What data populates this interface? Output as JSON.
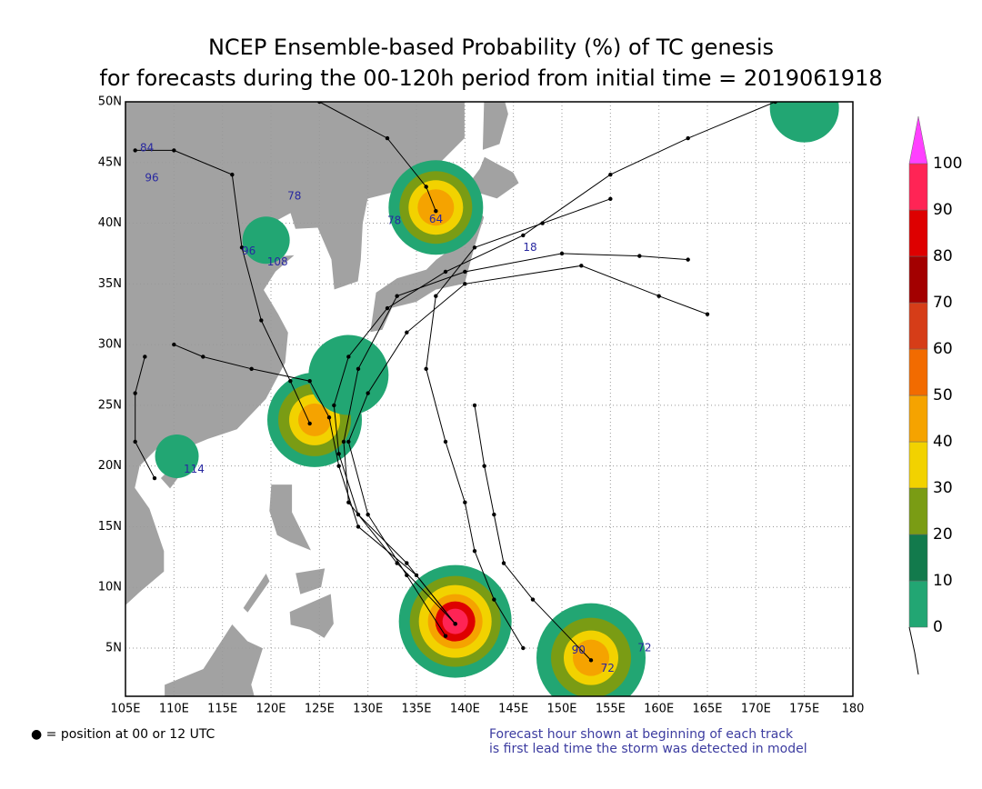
{
  "header": {
    "title_line1": "NCEP Ensemble-based Probability (%) of TC genesis",
    "title_line2": "for forecasts during the 00-120h period from initial time = 2019061918"
  },
  "map": {
    "lon_ticks": [
      "105E",
      "110E",
      "115E",
      "120E",
      "125E",
      "130E",
      "135E",
      "140E",
      "145E",
      "150E",
      "155E",
      "160E",
      "165E",
      "170E",
      "175E",
      "180"
    ],
    "lat_ticks": [
      "50N",
      "45N",
      "40N",
      "35N",
      "30N",
      "25N",
      "20N",
      "15N",
      "10N",
      "5N"
    ],
    "track_labels": [
      "84",
      "96",
      "78",
      "96",
      "108",
      "114",
      "18",
      "72",
      "90",
      "72",
      "64",
      "78"
    ]
  },
  "colorbar": {
    "labels": [
      0,
      10,
      20,
      30,
      40,
      50,
      60,
      70,
      80,
      90,
      100
    ],
    "colors": [
      "#22a673",
      "#127a4c",
      "#7a9c14",
      "#f2d200",
      "#f5a300",
      "#f26b00",
      "#d63d18",
      "#a30000",
      "#de0000",
      "#ff2455"
    ],
    "over_color": "#ff40ff"
  },
  "footer": {
    "legend_note": "● = position at 00 or 12 UTC",
    "note_line1": "Forecast hour shown at beginning of each track",
    "note_line2": "is first lead time the storm was detected in model"
  }
}
